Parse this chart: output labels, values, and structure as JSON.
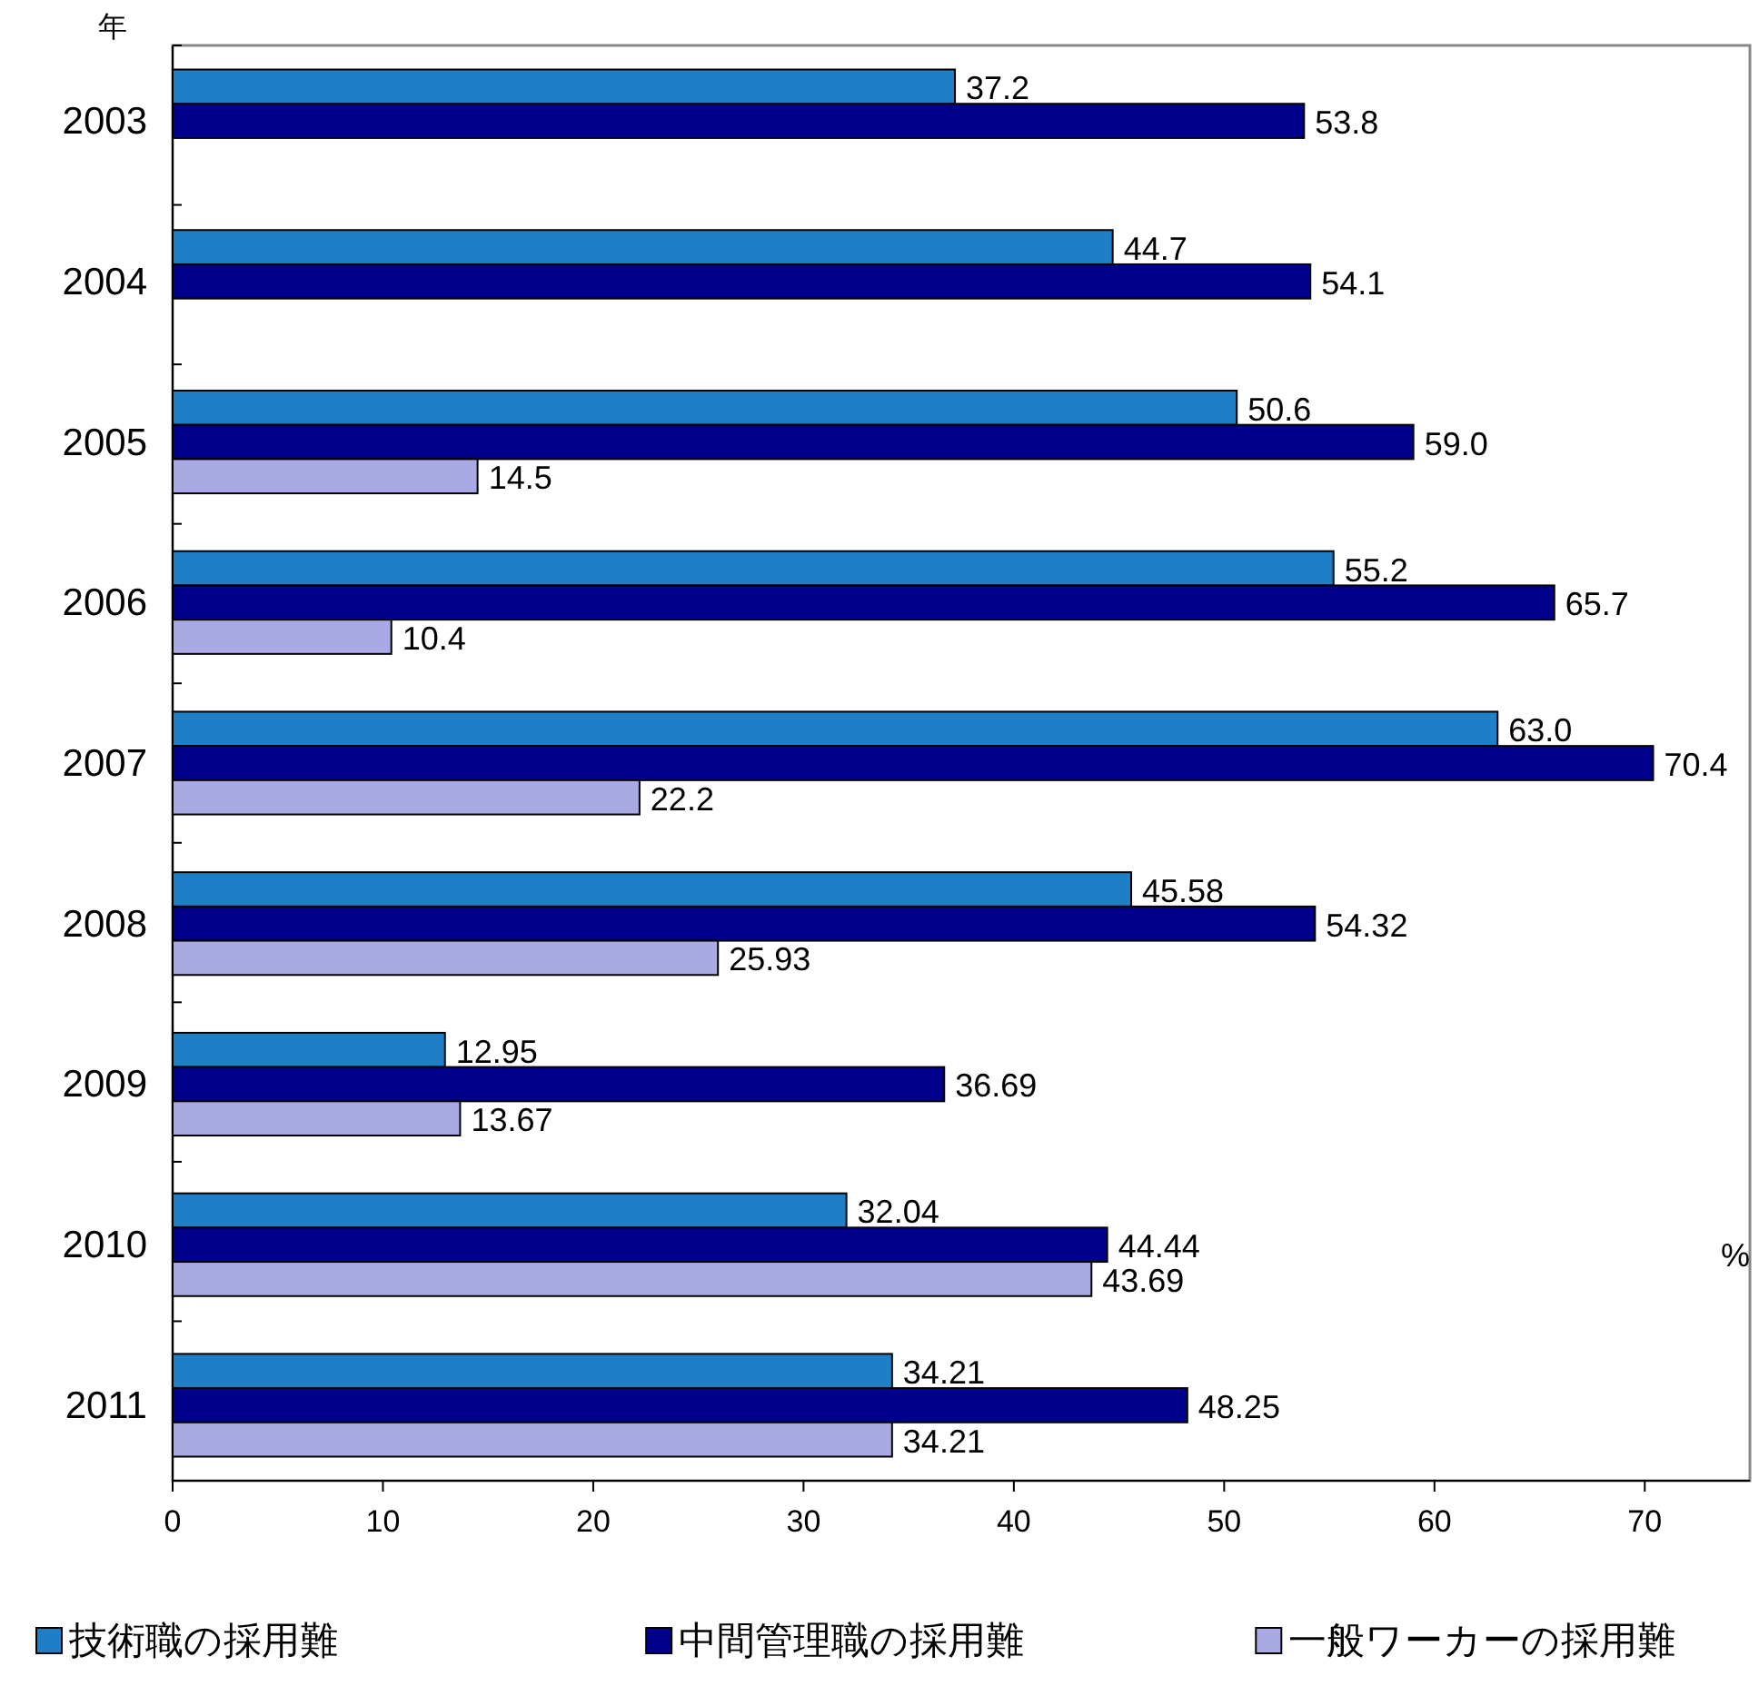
{
  "chart_data": {
    "type": "bar",
    "orientation": "horizontal",
    "ylabel": "年",
    "xlabel": "%",
    "categories": [
      "2003",
      "2004",
      "2005",
      "2006",
      "2007",
      "2008",
      "2009",
      "2010",
      "2011"
    ],
    "series": [
      {
        "name": "技術職の採用難",
        "color": "#1f7fc6",
        "values": [
          37.2,
          44.7,
          50.6,
          55.2,
          63.0,
          45.58,
          12.95,
          32.04,
          34.21
        ],
        "value_labels": [
          "37.2",
          "44.7",
          "50.6",
          "55.2",
          "63.0",
          "45.58",
          "12.95",
          "32.04",
          "34.21"
        ]
      },
      {
        "name": "中間管理職の採用難",
        "color": "#00008c",
        "values": [
          53.8,
          54.1,
          59.0,
          65.7,
          70.4,
          54.32,
          36.69,
          44.44,
          48.25
        ],
        "value_labels": [
          "53.8",
          "54.1",
          "59.0",
          "65.7",
          "70.4",
          "54.32",
          "36.69",
          "44.44",
          "48.25"
        ]
      },
      {
        "name": "一般ワーカーの採用難",
        "color": "#a9a9e3",
        "values": [
          null,
          null,
          14.5,
          10.4,
          22.2,
          25.93,
          13.67,
          43.69,
          34.21
        ],
        "value_labels": [
          null,
          null,
          "14.5",
          "10.4",
          "22.2",
          "25.93",
          "13.67",
          "43.69",
          "34.21"
        ]
      }
    ],
    "xlim": [
      0,
      75
    ],
    "xticks": [
      0,
      10,
      20,
      30,
      40,
      50,
      60,
      70
    ],
    "grid": false,
    "legend": "bottom"
  }
}
